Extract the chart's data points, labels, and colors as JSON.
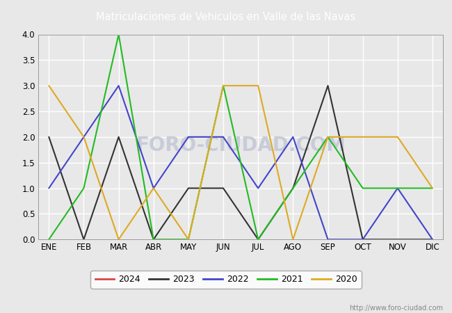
{
  "title": "Matriculaciones de Vehiculos en Valle de las Navas",
  "header_bg": "#5577cc",
  "months": [
    "ENE",
    "FEB",
    "MAR",
    "ABR",
    "MAY",
    "JUN",
    "JUL",
    "AGO",
    "SEP",
    "OCT",
    "NOV",
    "DIC"
  ],
  "series": {
    "2024": {
      "data": [
        null,
        null,
        null,
        null,
        null,
        null,
        null,
        null,
        null,
        null,
        null,
        null
      ],
      "color": "#dd4444",
      "linewidth": 1.5
    },
    "2023": {
      "data": [
        2,
        0,
        2,
        0,
        1,
        1,
        0,
        1,
        3,
        0,
        0,
        0
      ],
      "color": "#333333",
      "linewidth": 1.5
    },
    "2022": {
      "data": [
        1,
        2,
        3,
        1,
        2,
        2,
        1,
        2,
        0,
        0,
        1,
        0
      ],
      "color": "#4444cc",
      "linewidth": 1.5
    },
    "2021": {
      "data": [
        0,
        1,
        4,
        0,
        0,
        3,
        0,
        1,
        2,
        1,
        1,
        1
      ],
      "color": "#22bb22",
      "linewidth": 1.5
    },
    "2020": {
      "data": [
        3,
        2,
        0,
        1,
        0,
        3,
        3,
        0,
        2,
        2,
        2,
        1
      ],
      "color": "#ddaa22",
      "linewidth": 1.5
    }
  },
  "ylim": [
    0,
    4.0
  ],
  "yticks": [
    0.0,
    0.5,
    1.0,
    1.5,
    2.0,
    2.5,
    3.0,
    3.5,
    4.0
  ],
  "bg_color": "#e8e8e8",
  "plot_bg": "#e8e8e8",
  "grid_color": "#ffffff",
  "watermark_text": "FORO-CIUDAD.COM",
  "watermark_color": "#c8ccd8",
  "url_text": "http://www.foro-ciudad.com",
  "legend_years": [
    "2024",
    "2023",
    "2022",
    "2021",
    "2020"
  ],
  "legend_colors": [
    "#dd4444",
    "#333333",
    "#4444cc",
    "#22bb22",
    "#ddaa22"
  ]
}
